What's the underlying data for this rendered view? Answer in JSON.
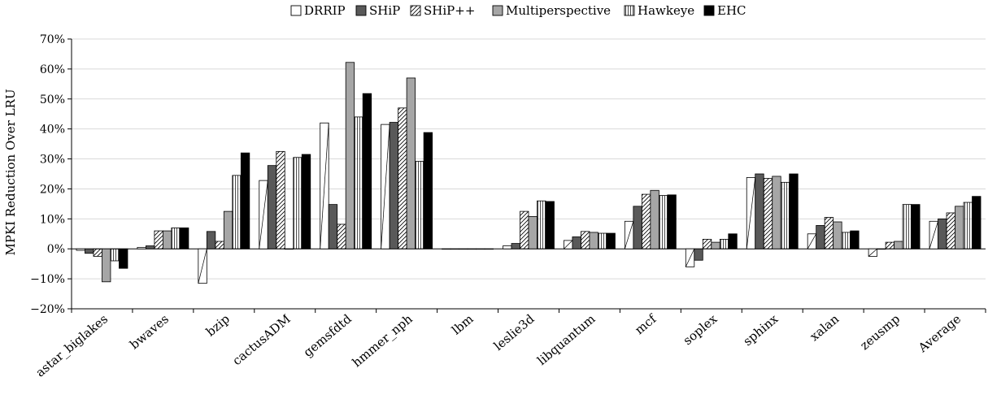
{
  "chart_data": {
    "type": "bar",
    "title": "",
    "xlabel": "",
    "ylabel": "MPKI Reduction Over LRU",
    "ylim": [
      -20,
      70
    ],
    "y_ticks": [
      "−20%",
      "−10%",
      "0%",
      "10%",
      "20%",
      "30%",
      "40%",
      "50%",
      "60%",
      "70%"
    ],
    "grid": true,
    "legend_position": "top-center",
    "categories": [
      "astar_biglakes",
      "bwaves",
      "bzip",
      "cactusADM",
      "gemsfdtd",
      "hmmer_nph",
      "lbm",
      "leslie3d",
      "libquantum",
      "mcf",
      "soplex",
      "sphinx",
      "xalan",
      "zeusmp",
      "Average"
    ],
    "series": [
      {
        "name": "DRRIP",
        "fill": "white",
        "values": [
          -0.5,
          0.5,
          -11.5,
          22.8,
          42.0,
          41.5,
          0,
          1.0,
          2.8,
          9.2,
          -6.0,
          23.8,
          5.0,
          -2.5,
          9.2
        ]
      },
      {
        "name": "SHiP",
        "fill": "dark",
        "values": [
          -1.5,
          1.0,
          5.8,
          27.8,
          14.8,
          42.2,
          0,
          1.8,
          4.0,
          14.2,
          -3.8,
          25.0,
          7.8,
          0.0,
          10.0
        ]
      },
      {
        "name": "SHiP++",
        "fill": "hatch",
        "values": [
          -2.5,
          6.0,
          2.5,
          32.5,
          8.2,
          47.0,
          0,
          12.5,
          5.8,
          18.2,
          3.2,
          23.5,
          10.5,
          2.2,
          12.0
        ]
      },
      {
        "name": "Multiperspective",
        "fill": "gray",
        "values": [
          -11.0,
          6.0,
          12.5,
          0,
          62.2,
          57.0,
          0,
          10.8,
          5.5,
          19.5,
          2.2,
          24.2,
          9.0,
          2.5,
          14.2
        ]
      },
      {
        "name": "Hawkeye",
        "fill": "vlines",
        "values": [
          -4.0,
          7.0,
          24.5,
          30.5,
          44.0,
          29.2,
          0,
          16.0,
          5.2,
          17.8,
          3.2,
          22.2,
          5.5,
          14.8,
          15.5
        ]
      },
      {
        "name": "EHC",
        "fill": "black",
        "values": [
          -6.5,
          7.0,
          32.0,
          31.5,
          51.8,
          38.8,
          0,
          15.8,
          5.2,
          18.0,
          5.0,
          25.0,
          6.0,
          14.8,
          17.5
        ]
      }
    ]
  }
}
